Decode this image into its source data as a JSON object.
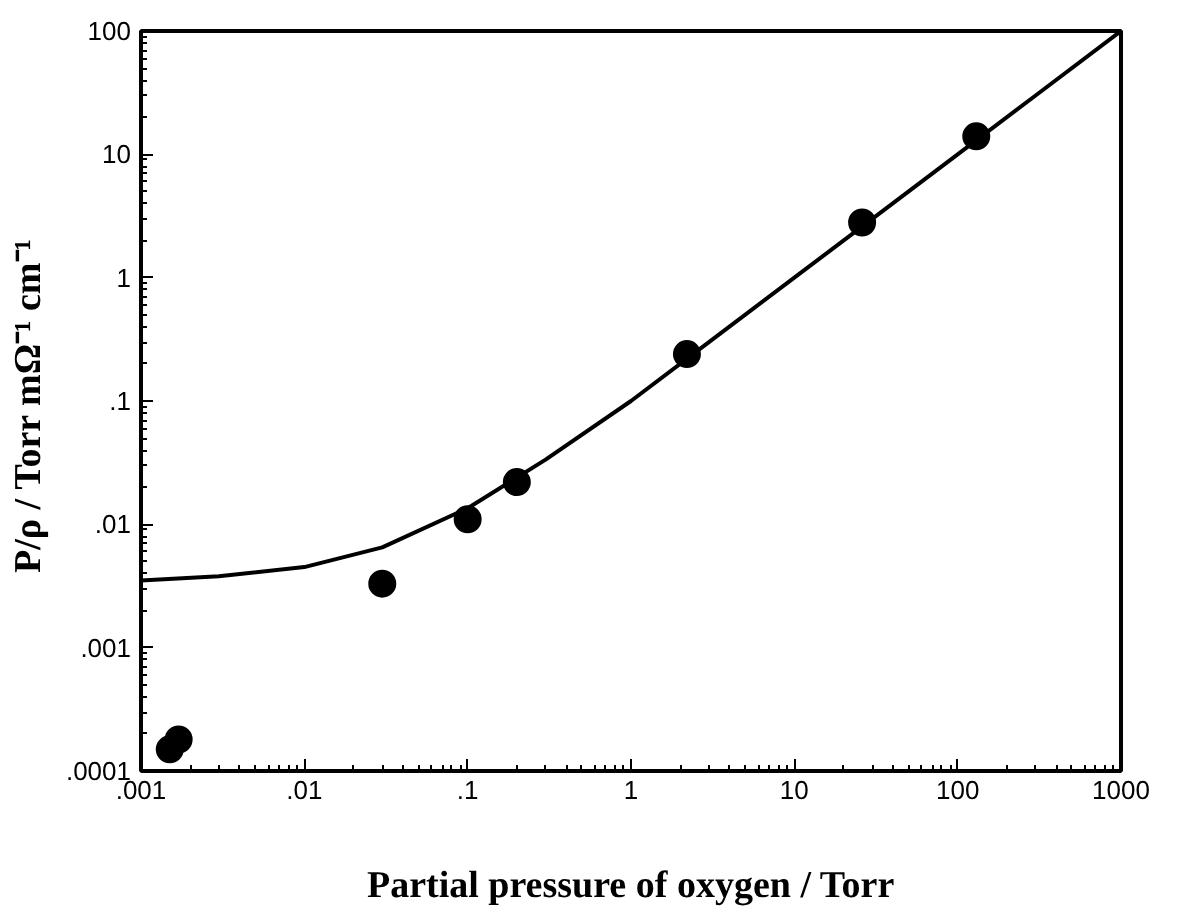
{
  "chart_data": {
    "type": "scatter",
    "log": "xy",
    "xlabel": "Partial pressure of oxygen / Torr",
    "ylabel": "P/ρ  / Torr mΩ⁻¹ cm⁻¹",
    "xlim": [
      0.001,
      1000
    ],
    "ylim": [
      0.0001,
      100
    ],
    "xticks": [
      {
        "value": 0.001,
        "label": ".001"
      },
      {
        "value": 0.01,
        "label": ".01"
      },
      {
        "value": 0.1,
        "label": ".1"
      },
      1,
      10,
      100,
      1000
    ],
    "yticks": [
      {
        "value": 0.0001,
        "label": ".0001"
      },
      {
        "value": 0.001,
        "label": ".001"
      },
      {
        "value": 0.01,
        "label": ".01"
      },
      {
        "value": 0.1,
        "label": ".1"
      },
      1,
      10,
      100
    ],
    "grid": false,
    "series": [
      {
        "color": "#000000",
        "marker": "circle",
        "x": [
          0.0015,
          0.0017,
          0.03,
          0.1,
          0.2,
          2.2,
          26,
          130
        ],
        "values": [
          0.00015,
          0.00018,
          0.0033,
          0.011,
          0.022,
          0.24,
          2.8,
          14
        ]
      },
      {
        "type": "line",
        "color": "#000000",
        "line_style": "solid",
        "x": [
          0.001,
          0.003,
          0.01,
          0.03,
          0.1,
          0.3,
          1,
          3,
          10,
          30,
          100,
          300,
          1000
        ],
        "values": [
          0.0035,
          0.0038,
          0.0045,
          0.0065,
          0.0135,
          0.0335,
          0.1,
          0.3,
          1,
          3,
          10,
          30,
          100
        ]
      }
    ]
  }
}
